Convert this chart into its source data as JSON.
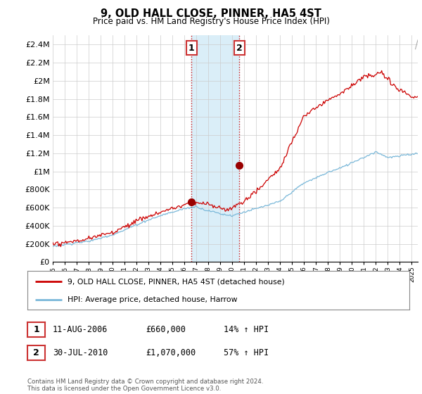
{
  "title": "9, OLD HALL CLOSE, PINNER, HA5 4ST",
  "subtitle": "Price paid vs. HM Land Registry's House Price Index (HPI)",
  "ylim": [
    0,
    2500000
  ],
  "yticks": [
    0,
    200000,
    400000,
    600000,
    800000,
    1000000,
    1200000,
    1400000,
    1600000,
    1800000,
    2000000,
    2200000,
    2400000
  ],
  "ytick_labels": [
    "£0",
    "£200K",
    "£400K",
    "£600K",
    "£800K",
    "£1M",
    "£1.2M",
    "£1.4M",
    "£1.6M",
    "£1.8M",
    "£2M",
    "£2.2M",
    "£2.4M"
  ],
  "xlim_start": 1995.0,
  "xlim_end": 2025.5,
  "sale1_x": 2006.6,
  "sale1_y": 660000,
  "sale2_x": 2010.58,
  "sale2_y": 1070000,
  "shade_color": "#daeef8",
  "hpi_color": "#7ab8d9",
  "price_color": "#cc0000",
  "sale_marker_color": "#990000",
  "vline_color": "#cc0000",
  "legend_label_price": "9, OLD HALL CLOSE, PINNER, HA5 4ST (detached house)",
  "legend_label_hpi": "HPI: Average price, detached house, Harrow",
  "table_row1": [
    "1",
    "11-AUG-2006",
    "£660,000",
    "14% ↑ HPI"
  ],
  "table_row2": [
    "2",
    "30-JUL-2010",
    "£1,070,000",
    "57% ↑ HPI"
  ],
  "footnote": "Contains HM Land Registry data © Crown copyright and database right 2024.\nThis data is licensed under the Open Government Licence v3.0.",
  "background_color": "#ffffff",
  "grid_color": "#cccccc"
}
